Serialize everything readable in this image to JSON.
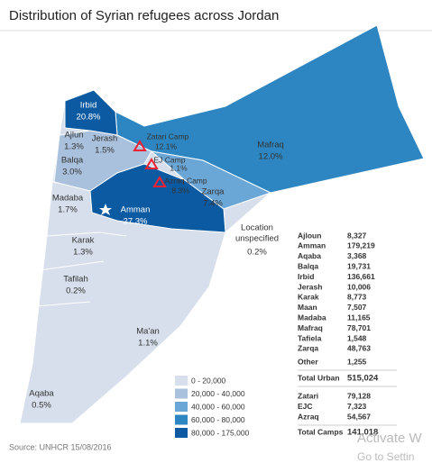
{
  "title": "Distribution of Syrian refugees across Jordan",
  "regions": [
    {
      "name": "Irbid",
      "share": "20.8%"
    },
    {
      "name": "Ajlun",
      "share": "1.3%"
    },
    {
      "name": "Jerash",
      "share": "1.5%"
    },
    {
      "name": "Balqa",
      "share": "3.0%"
    },
    {
      "name": "Madaba",
      "share": "1.7%"
    },
    {
      "name": "Amman",
      "share": "27.3%"
    },
    {
      "name": "Karak",
      "share": "1.3%"
    },
    {
      "name": "Tafilah",
      "share": "0.2%"
    },
    {
      "name": "Ma'an",
      "share": "1.1%"
    },
    {
      "name": "Aqaba",
      "share": "0.5%"
    },
    {
      "name": "Mafraq",
      "share": "12.0%"
    },
    {
      "name": "Zarqa",
      "share": "7.4%"
    }
  ],
  "unspecified": {
    "lines": [
      "Location",
      "unspecified"
    ],
    "share": "0.2%"
  },
  "camps": [
    {
      "name": "Zatari Camp",
      "share": "12.1%"
    },
    {
      "name": "EJ Camp",
      "share": "1.1%"
    },
    {
      "name": "Azraq Camp",
      "share": "8.3%"
    }
  ],
  "legend": [
    "0 - 20,000",
    "20,000 - 40,000",
    "40,000 - 60,000",
    "60,000 - 80,000",
    "80,000 - 175,000"
  ],
  "table": {
    "urban": [
      [
        "Ajloun",
        "8,327"
      ],
      [
        "Amman",
        "179,219"
      ],
      [
        "Aqaba",
        "3,368"
      ],
      [
        "Balqa",
        "19,731"
      ],
      [
        "Irbid",
        "136,661"
      ],
      [
        "Jerash",
        "10,006"
      ],
      [
        "Karak",
        "8,773"
      ],
      [
        "Maan",
        "7,507"
      ],
      [
        "Madaba",
        "11,165"
      ],
      [
        "Mafraq",
        "78,701"
      ],
      [
        "Tafiela",
        "1,548"
      ],
      [
        "Zarqa",
        "48,763"
      ]
    ],
    "other": [
      "Other",
      "1,255"
    ],
    "total_urban": [
      "Total Urban",
      "515,024"
    ],
    "camps": [
      [
        "Zatari",
        "79,128"
      ],
      [
        "EJC",
        "7,323"
      ],
      [
        "Azraq",
        "54,567"
      ]
    ],
    "total_camps": [
      "Total Camps",
      "141,018"
    ]
  },
  "source": "Source: UNHCR 15/08/2016",
  "watermark": [
    "Activate W",
    "Go to Settin"
  ]
}
